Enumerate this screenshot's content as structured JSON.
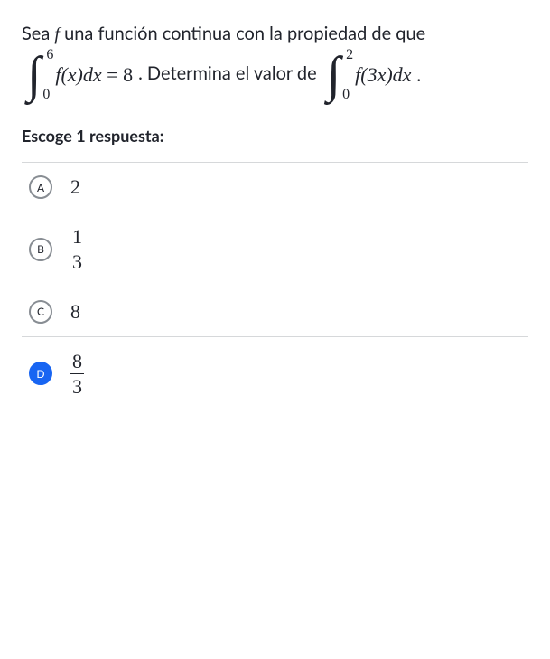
{
  "question": {
    "seg1": "Sea ",
    "f_sym": "f",
    "seg2": " una función continua con la propiedad de que ",
    "integral1": {
      "lower": "0",
      "upper": "6",
      "integrand_pre": "f",
      "integrand_var": "(x)dx",
      "eq": " = ",
      "rhs": "8"
    },
    "seg3": ". Determina el valor de ",
    "integral2": {
      "lower": "0",
      "upper": "2",
      "integrand_pre": "f",
      "integrand_var": "(3x)dx",
      "period": " ."
    }
  },
  "prompt": "Escoge 1 respuesta:",
  "choices": {
    "a": {
      "letter": "A",
      "value": "2",
      "is_fraction": false,
      "selected": false
    },
    "b": {
      "letter": "B",
      "num": "1",
      "den": "3",
      "is_fraction": true,
      "selected": false
    },
    "c": {
      "letter": "C",
      "value": "8",
      "is_fraction": false,
      "selected": false
    },
    "d": {
      "letter": "D",
      "num": "8",
      "den": "3",
      "is_fraction": true,
      "selected": true
    }
  },
  "colors": {
    "text": "#21242c",
    "border": "#d6d8da",
    "bubble_border": "#888d93",
    "selected": "#1865f2",
    "background": "#ffffff"
  }
}
